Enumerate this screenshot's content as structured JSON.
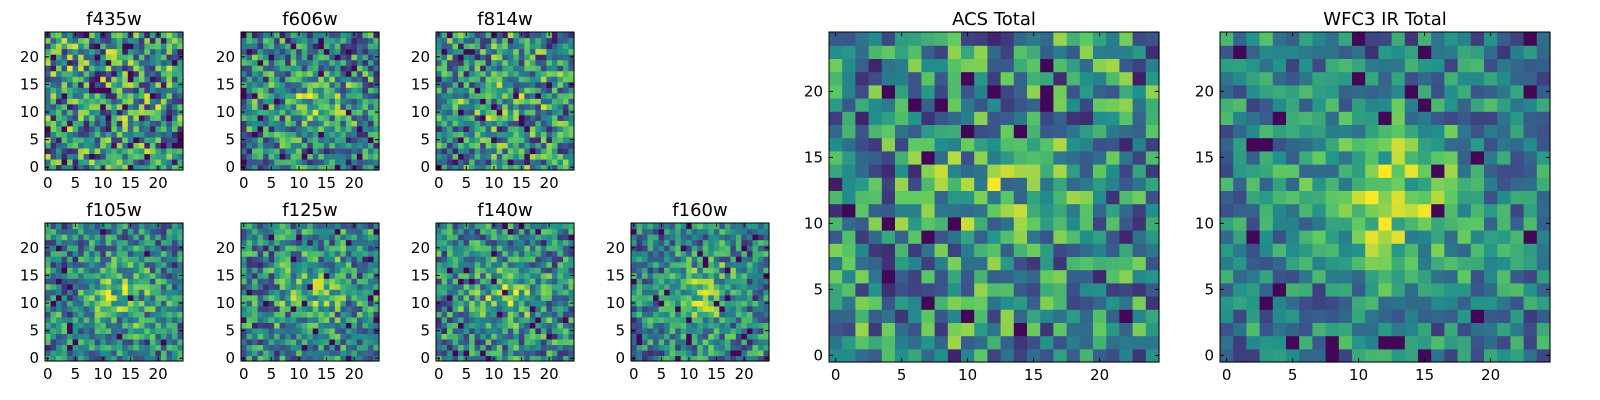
{
  "chart_data": {
    "type": "heatmap",
    "colormap": "viridis",
    "colors": [
      "#440154",
      "#3b528b",
      "#21918c",
      "#5ec962",
      "#fde725"
    ],
    "panels": [
      {
        "id": "f435w",
        "title": "f435w",
        "size": 25,
        "seed": 11,
        "blob": 0.0,
        "xticks": [
          0,
          5,
          10,
          15,
          20
        ],
        "yticks": [
          0,
          5,
          10,
          15,
          20
        ]
      },
      {
        "id": "f606w",
        "title": "f606w",
        "size": 25,
        "seed": 23,
        "blob": 0.35,
        "xticks": [
          0,
          5,
          10,
          15,
          20
        ],
        "yticks": [
          0,
          5,
          10,
          15,
          20
        ]
      },
      {
        "id": "f814w",
        "title": "f814w",
        "size": 25,
        "seed": 37,
        "blob": 0.2,
        "xticks": [
          0,
          5,
          10,
          15,
          20
        ],
        "yticks": [
          0,
          5,
          10,
          15,
          20
        ]
      },
      {
        "id": "f105w",
        "title": "f105w",
        "size": 25,
        "seed": 41,
        "blob": 0.5,
        "xticks": [
          0,
          5,
          10,
          15,
          20
        ],
        "yticks": [
          0,
          5,
          10,
          15,
          20
        ]
      },
      {
        "id": "f125w",
        "title": "f125w",
        "size": 25,
        "seed": 53,
        "blob": 0.45,
        "xticks": [
          0,
          5,
          10,
          15,
          20
        ],
        "yticks": [
          0,
          5,
          10,
          15,
          20
        ]
      },
      {
        "id": "f140w",
        "title": "f140w",
        "size": 25,
        "seed": 67,
        "blob": 0.45,
        "xticks": [
          0,
          5,
          10,
          15,
          20
        ],
        "yticks": [
          0,
          5,
          10,
          15,
          20
        ]
      },
      {
        "id": "f160w",
        "title": "f160w",
        "size": 25,
        "seed": 79,
        "blob": 0.55,
        "xticks": [
          0,
          5,
          10,
          15,
          20
        ],
        "yticks": [
          0,
          5,
          10,
          15,
          20
        ]
      },
      {
        "id": "acs-total",
        "title": "ACS Total",
        "size": 25,
        "seed": 97,
        "blob": 0.3,
        "xticks": [
          0,
          5,
          10,
          15,
          20
        ],
        "yticks": [
          0,
          5,
          10,
          15,
          20
        ]
      },
      {
        "id": "wfc3-ir-total",
        "title": "WFC3 IR Total",
        "size": 25,
        "seed": 131,
        "blob": 0.7,
        "xticks": [
          0,
          5,
          10,
          15,
          20
        ],
        "yticks": [
          0,
          5,
          10,
          15,
          20
        ]
      }
    ]
  }
}
